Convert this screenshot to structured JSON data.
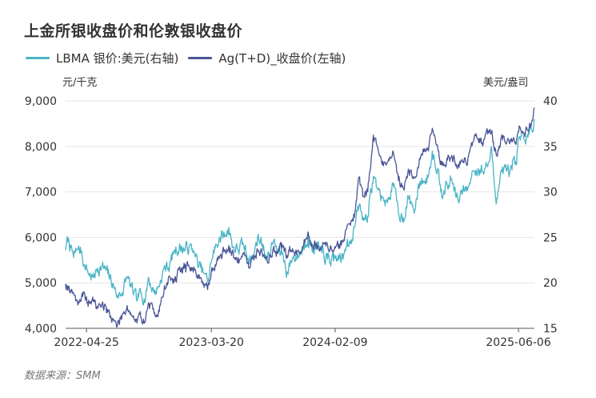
{
  "title": "上金所银收盘价和伦敦银收盘价",
  "legend_position": "top-left",
  "source": "数据来源：SMM",
  "chart_data": {
    "type": "line",
    "title": "上金所银收盘价和伦敦银收盘价",
    "y_left": {
      "unit": "元/千克",
      "range": [
        4000,
        9000
      ],
      "ticks": [
        "4,000",
        "5,000",
        "6,000",
        "7,000",
        "8,000",
        "9,000"
      ],
      "tick_values": [
        4000,
        5000,
        6000,
        7000,
        8000,
        9000
      ]
    },
    "y_right": {
      "unit": "美元/盎司",
      "range": [
        15,
        40
      ],
      "ticks": [
        "15",
        "20",
        "25",
        "30",
        "35",
        "40"
      ],
      "tick_values": [
        15,
        20,
        25,
        30,
        35,
        40
      ]
    },
    "x_range": [
      "2022-03-01",
      "2025-07-18"
    ],
    "x_ticks": [
      {
        "label": "2022-04-25",
        "date": "2022-04-25"
      },
      {
        "label": "2023-03-20",
        "date": "2023-03-20"
      },
      {
        "label": "2024-02-09",
        "date": "2024-02-09"
      },
      {
        "label": "2025-06-06",
        "date": "2025-06-06"
      }
    ],
    "grid": {
      "horizontal": true,
      "vertical": false
    },
    "series": [
      {
        "name": "LBMA 银价:美元(右轴)",
        "axis": "right",
        "color": "#4ab4c6",
        "points": [
          [
            "2022-03-01",
            23.6
          ],
          [
            "2022-03-08",
            24.9
          ],
          [
            "2022-03-15",
            23.9
          ],
          [
            "2022-03-22",
            22.8
          ],
          [
            "2022-04-01",
            23.7
          ],
          [
            "2022-04-12",
            23.5
          ],
          [
            "2022-04-20",
            22.0
          ],
          [
            "2022-05-01",
            21.0
          ],
          [
            "2022-05-13",
            20.6
          ],
          [
            "2022-05-25",
            21.6
          ],
          [
            "2022-06-05",
            21.8
          ],
          [
            "2022-06-20",
            21.0
          ],
          [
            "2022-07-05",
            19.8
          ],
          [
            "2022-07-15",
            18.5
          ],
          [
            "2022-07-28",
            18.9
          ],
          [
            "2022-08-10",
            20.6
          ],
          [
            "2022-08-25",
            19.0
          ],
          [
            "2022-09-05",
            18.0
          ],
          [
            "2022-09-15",
            18.9
          ],
          [
            "2022-09-28",
            18.4
          ],
          [
            "2022-10-05",
            20.6
          ],
          [
            "2022-10-20",
            18.9
          ],
          [
            "2022-11-01",
            19.6
          ],
          [
            "2022-11-15",
            21.6
          ],
          [
            "2022-11-30",
            21.9
          ],
          [
            "2022-12-12",
            23.6
          ],
          [
            "2022-12-28",
            23.9
          ],
          [
            "2023-01-10",
            23.7
          ],
          [
            "2023-01-20",
            23.9
          ],
          [
            "2023-02-01",
            23.5
          ],
          [
            "2023-02-15",
            21.8
          ],
          [
            "2023-03-01",
            21.0
          ],
          [
            "2023-03-10",
            20.1
          ],
          [
            "2023-03-20",
            22.3
          ],
          [
            "2023-03-30",
            23.8
          ],
          [
            "2023-04-10",
            25.0
          ],
          [
            "2023-04-25",
            25.2
          ],
          [
            "2023-05-05",
            26.1
          ],
          [
            "2023-05-15",
            24.0
          ],
          [
            "2023-05-30",
            23.6
          ],
          [
            "2023-06-12",
            24.2
          ],
          [
            "2023-06-25",
            22.7
          ],
          [
            "2023-07-10",
            23.1
          ],
          [
            "2023-07-20",
            25.1
          ],
          [
            "2023-08-01",
            24.3
          ],
          [
            "2023-08-15",
            22.7
          ],
          [
            "2023-08-30",
            24.5
          ],
          [
            "2023-09-10",
            23.5
          ],
          [
            "2023-09-25",
            23.1
          ],
          [
            "2023-10-05",
            21.1
          ],
          [
            "2023-10-20",
            22.8
          ],
          [
            "2023-11-01",
            23.0
          ],
          [
            "2023-11-15",
            23.5
          ],
          [
            "2023-11-30",
            25.2
          ],
          [
            "2023-12-10",
            23.7
          ],
          [
            "2023-12-22",
            24.2
          ],
          [
            "2024-01-05",
            23.3
          ],
          [
            "2024-01-20",
            22.6
          ],
          [
            "2024-02-05",
            22.4
          ],
          [
            "2024-02-20",
            22.8
          ],
          [
            "2024-03-01",
            22.6
          ],
          [
            "2024-03-12",
            24.8
          ],
          [
            "2024-03-22",
            24.7
          ],
          [
            "2024-04-01",
            26.2
          ],
          [
            "2024-04-12",
            28.5
          ],
          [
            "2024-04-22",
            27.2
          ],
          [
            "2024-05-05",
            27.3
          ],
          [
            "2024-05-20",
            31.7
          ],
          [
            "2024-06-01",
            30.3
          ],
          [
            "2024-06-12",
            29.4
          ],
          [
            "2024-06-26",
            28.8
          ],
          [
            "2024-07-10",
            31.0
          ],
          [
            "2024-07-25",
            27.7
          ],
          [
            "2024-08-06",
            27.2
          ],
          [
            "2024-08-20",
            29.3
          ],
          [
            "2024-09-06",
            28.0
          ],
          [
            "2024-09-20",
            31.2
          ],
          [
            "2024-10-01",
            31.2
          ],
          [
            "2024-10-12",
            31.8
          ],
          [
            "2024-10-22",
            34.5
          ],
          [
            "2024-11-05",
            32.6
          ],
          [
            "2024-11-15",
            30.3
          ],
          [
            "2024-12-01",
            30.6
          ],
          [
            "2024-12-12",
            31.4
          ],
          [
            "2024-12-30",
            28.9
          ],
          [
            "2025-01-10",
            30.0
          ],
          [
            "2025-01-24",
            30.5
          ],
          [
            "2025-02-07",
            32.3
          ],
          [
            "2025-02-20",
            32.6
          ],
          [
            "2025-03-05",
            32.2
          ],
          [
            "2025-03-20",
            33.3
          ],
          [
            "2025-03-28",
            34.4
          ],
          [
            "2025-04-04",
            30.6
          ],
          [
            "2025-04-10",
            29.3
          ],
          [
            "2025-04-22",
            32.4
          ],
          [
            "2025-05-05",
            32.3
          ],
          [
            "2025-05-20",
            32.4
          ],
          [
            "2025-06-01",
            33.0
          ],
          [
            "2025-06-08",
            36.0
          ],
          [
            "2025-06-20",
            35.8
          ],
          [
            "2025-07-01",
            36.0
          ],
          [
            "2025-07-10",
            36.9
          ],
          [
            "2025-07-18",
            38.0
          ]
        ]
      },
      {
        "name": "Ag(T+D)_收盘价(左轴)",
        "axis": "left",
        "color": "#4a5596",
        "points": [
          [
            "2022-03-01",
            4980
          ],
          [
            "2022-03-10",
            4920
          ],
          [
            "2022-03-20",
            4800
          ],
          [
            "2022-04-01",
            4600
          ],
          [
            "2022-04-15",
            4700
          ],
          [
            "2022-04-28",
            4570
          ],
          [
            "2022-05-10",
            4620
          ],
          [
            "2022-05-25",
            4450
          ],
          [
            "2022-06-05",
            4550
          ],
          [
            "2022-06-20",
            4350
          ],
          [
            "2022-07-05",
            4200
          ],
          [
            "2022-07-15",
            4040
          ],
          [
            "2022-07-28",
            4300
          ],
          [
            "2022-08-10",
            4500
          ],
          [
            "2022-08-25",
            4250
          ],
          [
            "2022-09-05",
            4120
          ],
          [
            "2022-09-15",
            4250
          ],
          [
            "2022-09-28",
            4200
          ],
          [
            "2022-10-05",
            4550
          ],
          [
            "2022-10-20",
            4330
          ],
          [
            "2022-11-01",
            4400
          ],
          [
            "2022-11-15",
            4800
          ],
          [
            "2022-11-30",
            5150
          ],
          [
            "2022-12-12",
            5020
          ],
          [
            "2022-12-28",
            5250
          ],
          [
            "2023-01-10",
            5400
          ],
          [
            "2023-01-22",
            5320
          ],
          [
            "2023-02-05",
            5300
          ],
          [
            "2023-02-20",
            5120
          ],
          [
            "2023-03-01",
            4900
          ],
          [
            "2023-03-10",
            4850
          ],
          [
            "2023-03-20",
            5250
          ],
          [
            "2023-03-30",
            5400
          ],
          [
            "2023-04-12",
            5600
          ],
          [
            "2023-04-25",
            5700
          ],
          [
            "2023-05-05",
            5820
          ],
          [
            "2023-05-18",
            5550
          ],
          [
            "2023-05-30",
            5550
          ],
          [
            "2023-06-12",
            5630
          ],
          [
            "2023-06-25",
            5450
          ],
          [
            "2023-07-10",
            5500
          ],
          [
            "2023-07-20",
            5720
          ],
          [
            "2023-08-01",
            5650
          ],
          [
            "2023-08-15",
            5450
          ],
          [
            "2023-08-30",
            5750
          ],
          [
            "2023-09-10",
            5650
          ],
          [
            "2023-09-25",
            5800
          ],
          [
            "2023-10-05",
            5600
          ],
          [
            "2023-10-20",
            5750
          ],
          [
            "2023-11-01",
            5700
          ],
          [
            "2023-11-15",
            5800
          ],
          [
            "2023-11-30",
            6120
          ],
          [
            "2023-12-10",
            5850
          ],
          [
            "2023-12-22",
            5880
          ],
          [
            "2024-01-05",
            5800
          ],
          [
            "2024-01-20",
            5830
          ],
          [
            "2024-02-05",
            5700
          ],
          [
            "2024-02-20",
            5850
          ],
          [
            "2024-03-01",
            5900
          ],
          [
            "2024-03-12",
            6270
          ],
          [
            "2024-03-22",
            6350
          ],
          [
            "2024-04-01",
            6550
          ],
          [
            "2024-04-12",
            7320
          ],
          [
            "2024-04-22",
            6900
          ],
          [
            "2024-05-05",
            7000
          ],
          [
            "2024-05-20",
            8250
          ],
          [
            "2024-06-01",
            7950
          ],
          [
            "2024-06-12",
            7600
          ],
          [
            "2024-06-26",
            7650
          ],
          [
            "2024-07-10",
            7900
          ],
          [
            "2024-07-25",
            7250
          ],
          [
            "2024-08-06",
            7100
          ],
          [
            "2024-08-20",
            7500
          ],
          [
            "2024-09-06",
            7300
          ],
          [
            "2024-09-20",
            7720
          ],
          [
            "2024-10-01",
            7950
          ],
          [
            "2024-10-12",
            7900
          ],
          [
            "2024-10-22",
            8400
          ],
          [
            "2024-11-05",
            8000
          ],
          [
            "2024-11-15",
            7600
          ],
          [
            "2024-12-01",
            7700
          ],
          [
            "2024-12-12",
            7800
          ],
          [
            "2024-12-30",
            7600
          ],
          [
            "2025-01-10",
            7650
          ],
          [
            "2025-01-24",
            7750
          ],
          [
            "2025-02-07",
            8100
          ],
          [
            "2025-02-20",
            8150
          ],
          [
            "2025-03-05",
            8050
          ],
          [
            "2025-03-20",
            8300
          ],
          [
            "2025-03-28",
            8350
          ],
          [
            "2025-04-04",
            7900
          ],
          [
            "2025-04-10",
            7800
          ],
          [
            "2025-04-22",
            8200
          ],
          [
            "2025-05-05",
            8050
          ],
          [
            "2025-05-20",
            8100
          ],
          [
            "2025-06-01",
            8150
          ],
          [
            "2025-06-08",
            8450
          ],
          [
            "2025-06-20",
            8300
          ],
          [
            "2025-07-01",
            8350
          ],
          [
            "2025-07-10",
            8500
          ],
          [
            "2025-07-18",
            8850
          ]
        ]
      }
    ]
  }
}
